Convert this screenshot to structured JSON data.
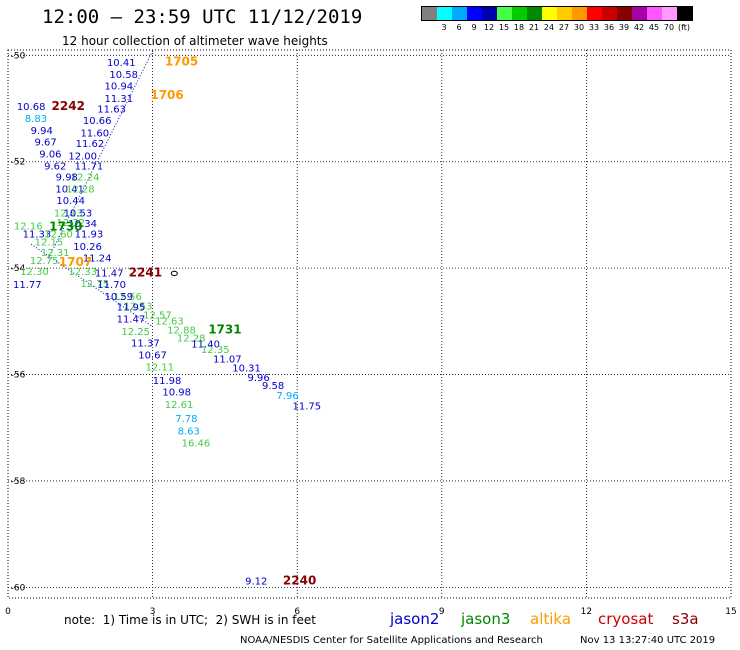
{
  "header": {
    "title": "12:00 — 23:59 UTC 11/12/2019",
    "subtitle": "12 hour collection of altimeter wave heights"
  },
  "scale": {
    "unit": "(ft)",
    "colors": [
      "#808080",
      "#00ffff",
      "#00aaff",
      "#0000ff",
      "#0000aa",
      "#44ff44",
      "#00cc00",
      "#008800",
      "#ffff00",
      "#ffcc00",
      "#ff9900",
      "#ff0000",
      "#cc0000",
      "#880000",
      "#aa00aa",
      "#ff55ff",
      "#ff99ff",
      "#000000"
    ],
    "labels": [
      "3",
      "6",
      "9",
      "12",
      "15",
      "18",
      "21",
      "24",
      "27",
      "30",
      "33",
      "36",
      "39",
      "42",
      "45",
      "70"
    ]
  },
  "legend": {
    "note": "note:  1) Time is in UTC;  2) SWH is in feet",
    "satellites": [
      {
        "name": "jason2",
        "color": "#0000cc"
      },
      {
        "name": "jason3",
        "color": "#008800"
      },
      {
        "name": "altika",
        "color": "#ff9900"
      },
      {
        "name": "cryosat",
        "color": "#cc0000"
      },
      {
        "name": "s3a",
        "color": "#880000"
      }
    ]
  },
  "footer": {
    "credit": "NOAA/NESDIS Center for Satellite Applications and Research",
    "timestamp": "Nov 13 13:27:40 UTC 2019"
  },
  "chart_data": {
    "type": "scatter",
    "x_ticks": [
      "0",
      "3",
      "6",
      "9",
      "12",
      "15"
    ],
    "y_ticks": [
      "-50",
      "-52",
      "-54",
      "-56",
      "-58",
      "-60"
    ],
    "xlim": [
      0,
      15
    ],
    "ylim": [
      -60.2,
      -49.9
    ],
    "grid": true,
    "observations": [
      {
        "x": 2.35,
        "y": -50.13,
        "label": "10.41",
        "color": "#0000cc"
      },
      {
        "x": 2.4,
        "y": -50.35,
        "label": "10.58",
        "color": "#0000cc"
      },
      {
        "x": 2.3,
        "y": -50.57,
        "label": "10.94",
        "color": "#0000cc"
      },
      {
        "x": 2.3,
        "y": -50.8,
        "label": "11.31",
        "color": "#0000cc"
      },
      {
        "x": 2.15,
        "y": -51.0,
        "label": "11.63",
        "color": "#0000cc"
      },
      {
        "x": 1.85,
        "y": -51.22,
        "label": "10.66",
        "color": "#0000cc"
      },
      {
        "x": 1.8,
        "y": -51.45,
        "label": "11.60",
        "color": "#0000cc"
      },
      {
        "x": 1.7,
        "y": -51.65,
        "label": "11.62",
        "color": "#0000cc"
      },
      {
        "x": 1.55,
        "y": -51.88,
        "label": "12.00",
        "color": "#0000cc"
      },
      {
        "x": 0.48,
        "y": -50.95,
        "label": "10.68",
        "color": "#0000cc"
      },
      {
        "x": 0.58,
        "y": -51.18,
        "label": "8.83",
        "color": "#00aaff"
      },
      {
        "x": 0.7,
        "y": -51.4,
        "label": "9.94",
        "color": "#0000cc"
      },
      {
        "x": 0.78,
        "y": -51.62,
        "label": "9.67",
        "color": "#0000cc"
      },
      {
        "x": 0.88,
        "y": -51.85,
        "label": "9.06",
        "color": "#0000cc"
      },
      {
        "x": 0.98,
        "y": -52.07,
        "label": "9.62",
        "color": "#0000cc"
      },
      {
        "x": 1.68,
        "y": -52.07,
        "label": "11.71",
        "color": "#0000cc"
      },
      {
        "x": 1.6,
        "y": -52.28,
        "label": "12.24",
        "color": "#44cc44"
      },
      {
        "x": 1.22,
        "y": -52.28,
        "label": "9.98",
        "color": "#0000cc"
      },
      {
        "x": 1.28,
        "y": -52.5,
        "label": "10.41",
        "color": "#0000cc"
      },
      {
        "x": 1.5,
        "y": -52.5,
        "label": "12.28",
        "color": "#44cc44"
      },
      {
        "x": 1.3,
        "y": -52.72,
        "label": "10.44",
        "color": "#0000cc"
      },
      {
        "x": 1.25,
        "y": -52.95,
        "label": "12.13",
        "color": "#44cc44"
      },
      {
        "x": 1.45,
        "y": -52.95,
        "label": "10.53",
        "color": "#0000cc"
      },
      {
        "x": 1.3,
        "y": -53.13,
        "label": "12.32",
        "color": "#44cc44"
      },
      {
        "x": 1.55,
        "y": -53.15,
        "label": "10.34",
        "color": "#0000cc"
      },
      {
        "x": 0.42,
        "y": -53.2,
        "label": "12.16",
        "color": "#44cc44"
      },
      {
        "x": 1.2,
        "y": -53.22,
        "label": "1730",
        "color": "#008800",
        "bold": true
      },
      {
        "x": 0.6,
        "y": -53.35,
        "label": "11.33",
        "color": "#0000cc"
      },
      {
        "x": 1.05,
        "y": -53.35,
        "label": "12.60",
        "color": "#44cc44"
      },
      {
        "x": 1.68,
        "y": -53.35,
        "label": "11.93",
        "color": "#0000cc"
      },
      {
        "x": 0.85,
        "y": -53.5,
        "label": "12.15",
        "color": "#44cc44"
      },
      {
        "x": 0.98,
        "y": -53.7,
        "label": "12.31",
        "color": "#44cc44"
      },
      {
        "x": 1.65,
        "y": -53.58,
        "label": "10.26",
        "color": "#0000cc"
      },
      {
        "x": 1.85,
        "y": -53.8,
        "label": "11.24",
        "color": "#0000cc"
      },
      {
        "x": 0.75,
        "y": -53.85,
        "label": "12.75",
        "color": "#44cc44"
      },
      {
        "x": 1.4,
        "y": -53.88,
        "label": "1707",
        "color": "#ff9900",
        "bold": true
      },
      {
        "x": 0.55,
        "y": -54.05,
        "label": "12.30",
        "color": "#44cc44"
      },
      {
        "x": 1.55,
        "y": -54.05,
        "label": "12.33",
        "color": "#44cc44"
      },
      {
        "x": 2.1,
        "y": -54.08,
        "label": "11.47",
        "color": "#0000cc"
      },
      {
        "x": 0.4,
        "y": -54.3,
        "label": "11.77",
        "color": "#0000cc"
      },
      {
        "x": 1.8,
        "y": -54.28,
        "label": "12.75",
        "color": "#44cc44"
      },
      {
        "x": 2.15,
        "y": -54.3,
        "label": "11.70",
        "color": "#0000cc"
      },
      {
        "x": 2.48,
        "y": -54.52,
        "label": "12.56",
        "color": "#44cc44"
      },
      {
        "x": 2.3,
        "y": -54.52,
        "label": "10.59",
        "color": "#0000cc"
      },
      {
        "x": 2.7,
        "y": -54.7,
        "label": "12.53",
        "color": "#44cc44"
      },
      {
        "x": 2.55,
        "y": -54.72,
        "label": "11.95",
        "color": "#0000cc"
      },
      {
        "x": 3.1,
        "y": -54.87,
        "label": "12.57",
        "color": "#44cc44"
      },
      {
        "x": 2.55,
        "y": -54.95,
        "label": "11.47",
        "color": "#0000cc"
      },
      {
        "x": 3.35,
        "y": -54.98,
        "label": "12.63",
        "color": "#44cc44"
      },
      {
        "x": 2.65,
        "y": -55.18,
        "label": "12.25",
        "color": "#44cc44"
      },
      {
        "x": 3.6,
        "y": -55.15,
        "label": "12.88",
        "color": "#44cc44"
      },
      {
        "x": 3.8,
        "y": -55.3,
        "label": "12.28",
        "color": "#44cc44"
      },
      {
        "x": 2.85,
        "y": -55.4,
        "label": "11.37",
        "color": "#0000cc"
      },
      {
        "x": 4.1,
        "y": -55.42,
        "label": "11.40",
        "color": "#0000cc"
      },
      {
        "x": 4.3,
        "y": -55.52,
        "label": "12.35",
        "color": "#44cc44"
      },
      {
        "x": 3.0,
        "y": -55.62,
        "label": "10.67",
        "color": "#0000cc"
      },
      {
        "x": 4.55,
        "y": -55.7,
        "label": "11.07",
        "color": "#0000cc"
      },
      {
        "x": 3.15,
        "y": -55.85,
        "label": "12.11",
        "color": "#44cc44"
      },
      {
        "x": 4.95,
        "y": -55.87,
        "label": "10.31",
        "color": "#0000cc"
      },
      {
        "x": 5.2,
        "y": -56.05,
        "label": "9.96",
        "color": "#0000cc"
      },
      {
        "x": 3.3,
        "y": -56.1,
        "label": "11.98",
        "color": "#0000cc"
      },
      {
        "x": 5.5,
        "y": -56.2,
        "label": "9.58",
        "color": "#0000cc"
      },
      {
        "x": 3.5,
        "y": -56.32,
        "label": "10.98",
        "color": "#0000cc"
      },
      {
        "x": 5.8,
        "y": -56.38,
        "label": "7.96",
        "color": "#00aaff"
      },
      {
        "x": 6.2,
        "y": -56.58,
        "label": "11.75",
        "color": "#0000cc"
      },
      {
        "x": 3.55,
        "y": -56.55,
        "label": "12.61",
        "color": "#44cc44"
      },
      {
        "x": 3.7,
        "y": -56.82,
        "label": "7.78",
        "color": "#00aaff"
      },
      {
        "x": 3.75,
        "y": -57.05,
        "label": "8.63",
        "color": "#00aaff"
      },
      {
        "x": 3.9,
        "y": -57.28,
        "label": "16.46",
        "color": "#44cc44"
      },
      {
        "x": 5.15,
        "y": -59.87,
        "label": "9.12",
        "color": "#0000cc"
      }
    ],
    "time_labels": [
      {
        "x": 3.6,
        "y": -50.12,
        "label": "1705",
        "color": "#ff9900"
      },
      {
        "x": 3.3,
        "y": -50.75,
        "label": "1706",
        "color": "#ff9900"
      },
      {
        "x": 1.25,
        "y": -50.95,
        "label": "2242",
        "color": "#880000"
      },
      {
        "x": 2.85,
        "y": -54.08,
        "label": "2241",
        "color": "#880000"
      },
      {
        "x": 4.5,
        "y": -55.15,
        "label": "1731",
        "color": "#008800"
      },
      {
        "x": 6.05,
        "y": -59.87,
        "label": "2240",
        "color": "#880000"
      }
    ],
    "tracks": [
      {
        "color": "#0000cc",
        "points": [
          [
            3.0,
            -49.92
          ],
          [
            0.82,
            -53.85
          ]
        ]
      },
      {
        "color": "#0000cc",
        "points": [
          [
            0.48,
            -53.55
          ],
          [
            3.0,
            -55.1
          ]
        ]
      }
    ],
    "marker": {
      "x": 3.45,
      "y": -54.1
    }
  }
}
